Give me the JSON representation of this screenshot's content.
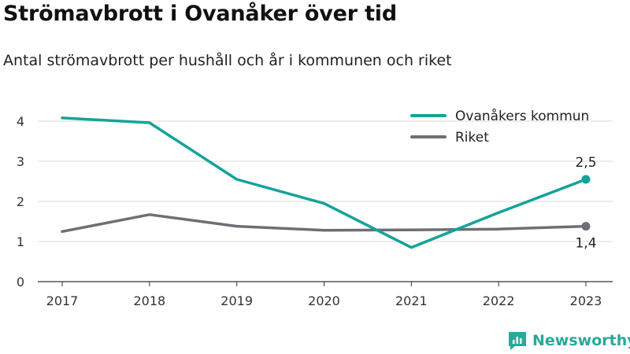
{
  "title": "Strömavbrott i Ovanåker över tid",
  "subtitle": "Antal strömavbrott per hushåll och år i kommunen och riket",
  "brand": "Newsworthy",
  "colors": {
    "ovanaker": "#14a39a",
    "riket": "#6e6e75",
    "grid": "#d9d9d9",
    "axis": "#333333",
    "brand": "#2aa99a"
  },
  "chart_data": {
    "type": "line",
    "x": [
      "2017",
      "2018",
      "2019",
      "2020",
      "2021",
      "2022",
      "2023"
    ],
    "series": [
      {
        "name": "Ovanåkers kommun",
        "values": [
          4.08,
          3.96,
          2.55,
          1.95,
          0.85,
          1.72,
          2.55
        ],
        "end_label": "2,5"
      },
      {
        "name": "Riket",
        "values": [
          1.25,
          1.67,
          1.38,
          1.28,
          1.29,
          1.31,
          1.38
        ],
        "end_label": "1,4"
      }
    ],
    "yticks": [
      "0",
      "1",
      "2",
      "3",
      "4"
    ],
    "ylim": [
      0,
      4.5
    ],
    "grid": true,
    "legend_position": "top-right",
    "xlabel": "",
    "ylabel": ""
  }
}
